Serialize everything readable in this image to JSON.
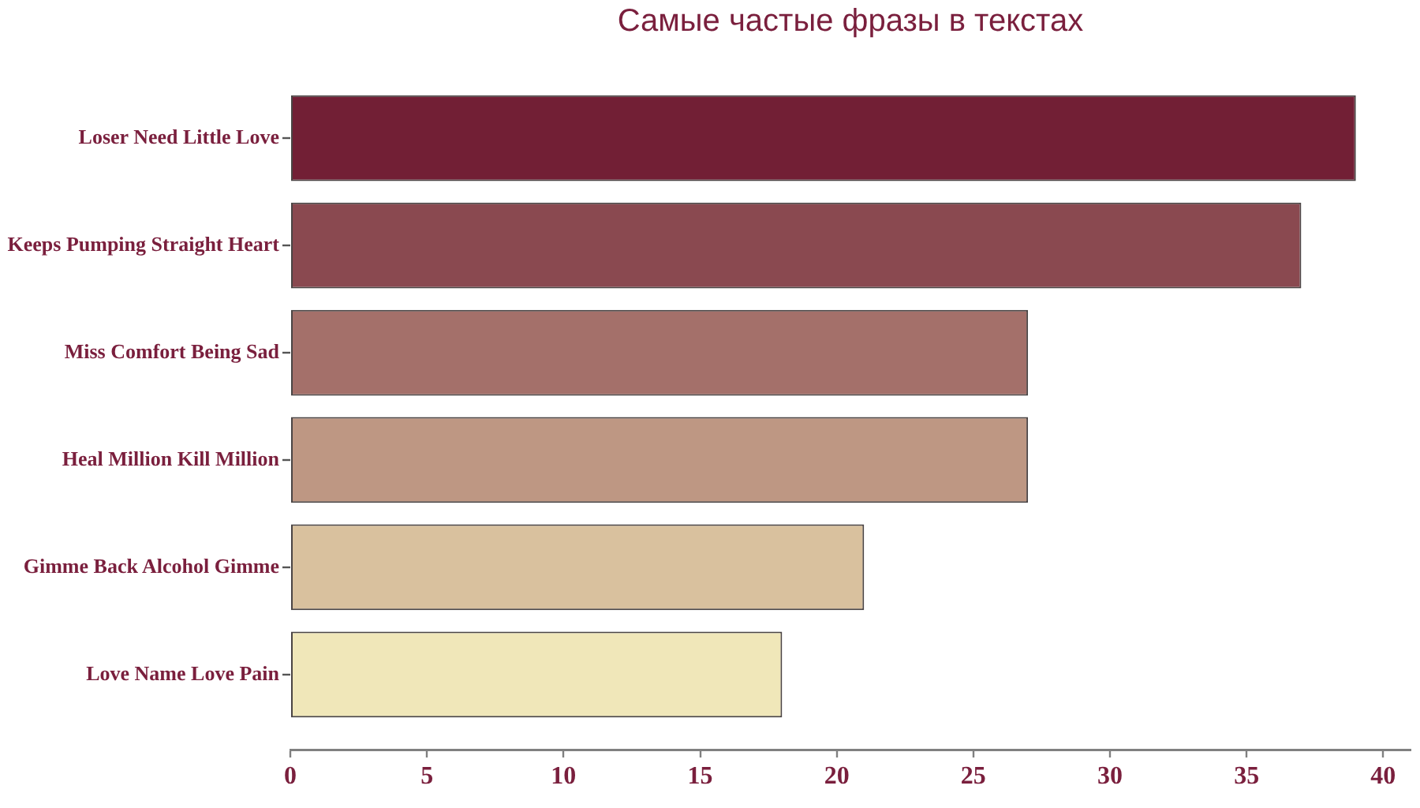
{
  "chart_data": {
    "type": "bar",
    "orientation": "horizontal",
    "title": "Самые частые фразы в текстах",
    "categories": [
      "Loser Need Little Love",
      "Keeps Pumping Straight Heart",
      "Miss Comfort Being Sad",
      "Heal Million Kill Million",
      "Gimme Back Alcohol Gimme",
      "Love Name Love Pain"
    ],
    "values": [
      39,
      37,
      27,
      27,
      21,
      18
    ],
    "colors": [
      "#721f35",
      "#8a4950",
      "#a4706a",
      "#be9783",
      "#d9c19e",
      "#f0e7b9"
    ],
    "xlim": [
      0,
      41
    ],
    "xticks": [
      0,
      5,
      10,
      15,
      20,
      25,
      30,
      35,
      40
    ],
    "grid": false,
    "legend": false
  }
}
